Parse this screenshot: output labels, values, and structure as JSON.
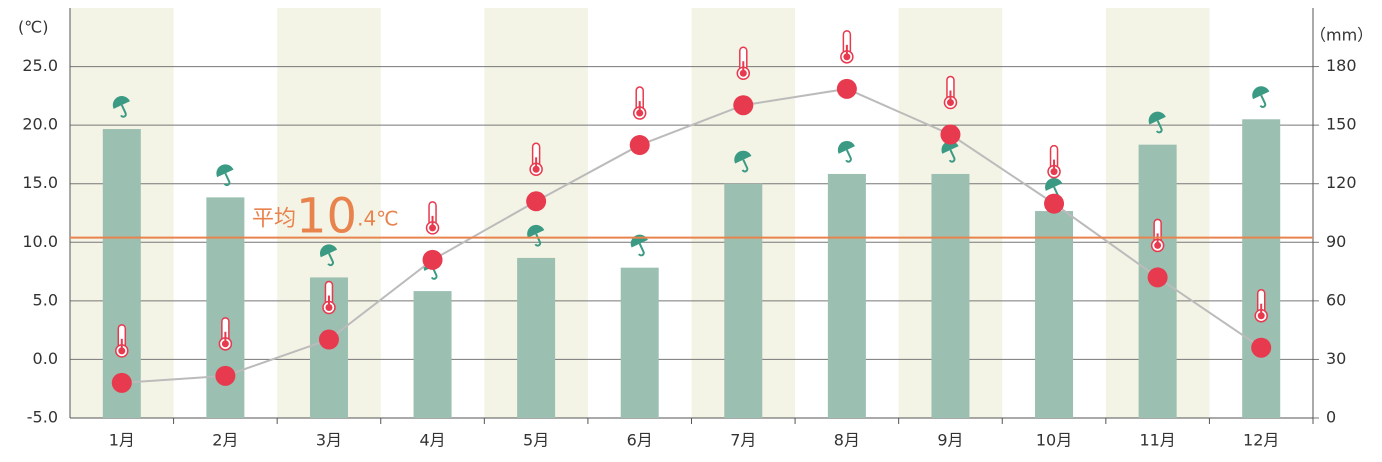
{
  "chart_data": {
    "type": "combo",
    "categories": [
      "1月",
      "2月",
      "3月",
      "4月",
      "5月",
      "6月",
      "7月",
      "8月",
      "9月",
      "10月",
      "11月",
      "12月"
    ],
    "series": [
      {
        "type": "bar",
        "axis": "y2",
        "color": "#9bbfb0",
        "values": [
          148,
          113,
          72,
          65,
          82,
          77,
          120,
          125,
          125,
          106,
          140,
          153
        ]
      },
      {
        "type": "line",
        "axis": "y",
        "color": "#e83a4e",
        "line_color": "#bbbbbb",
        "values": [
          -2.0,
          -1.4,
          1.7,
          8.5,
          13.5,
          18.3,
          21.7,
          23.1,
          19.2,
          13.3,
          7.0,
          1.0
        ]
      }
    ],
    "ylabel": "(℃)",
    "y2label": "（mm）",
    "ylim": [
      -5,
      30
    ],
    "yticks": [
      {
        "value": -5,
        "label": "-5.0"
      },
      {
        "value": 0,
        "label": "0.0"
      },
      {
        "value": 5,
        "label": "5.0"
      },
      {
        "value": 10,
        "label": "10.0"
      },
      {
        "value": 15,
        "label": "15.0"
      },
      {
        "value": 20,
        "label": "20.0"
      },
      {
        "value": 25,
        "label": "25.0"
      }
    ],
    "y2lim": [
      0,
      210
    ],
    "y2ticks": [
      0,
      30,
      60,
      90,
      120,
      150,
      180
    ],
    "grid": true,
    "band_color": "#f4f4e6",
    "annotation": {
      "text": "平均",
      "value": 10.4,
      "value_label": [
        "10",
        ".4℃"
      ],
      "color": "#e8834e"
    }
  }
}
